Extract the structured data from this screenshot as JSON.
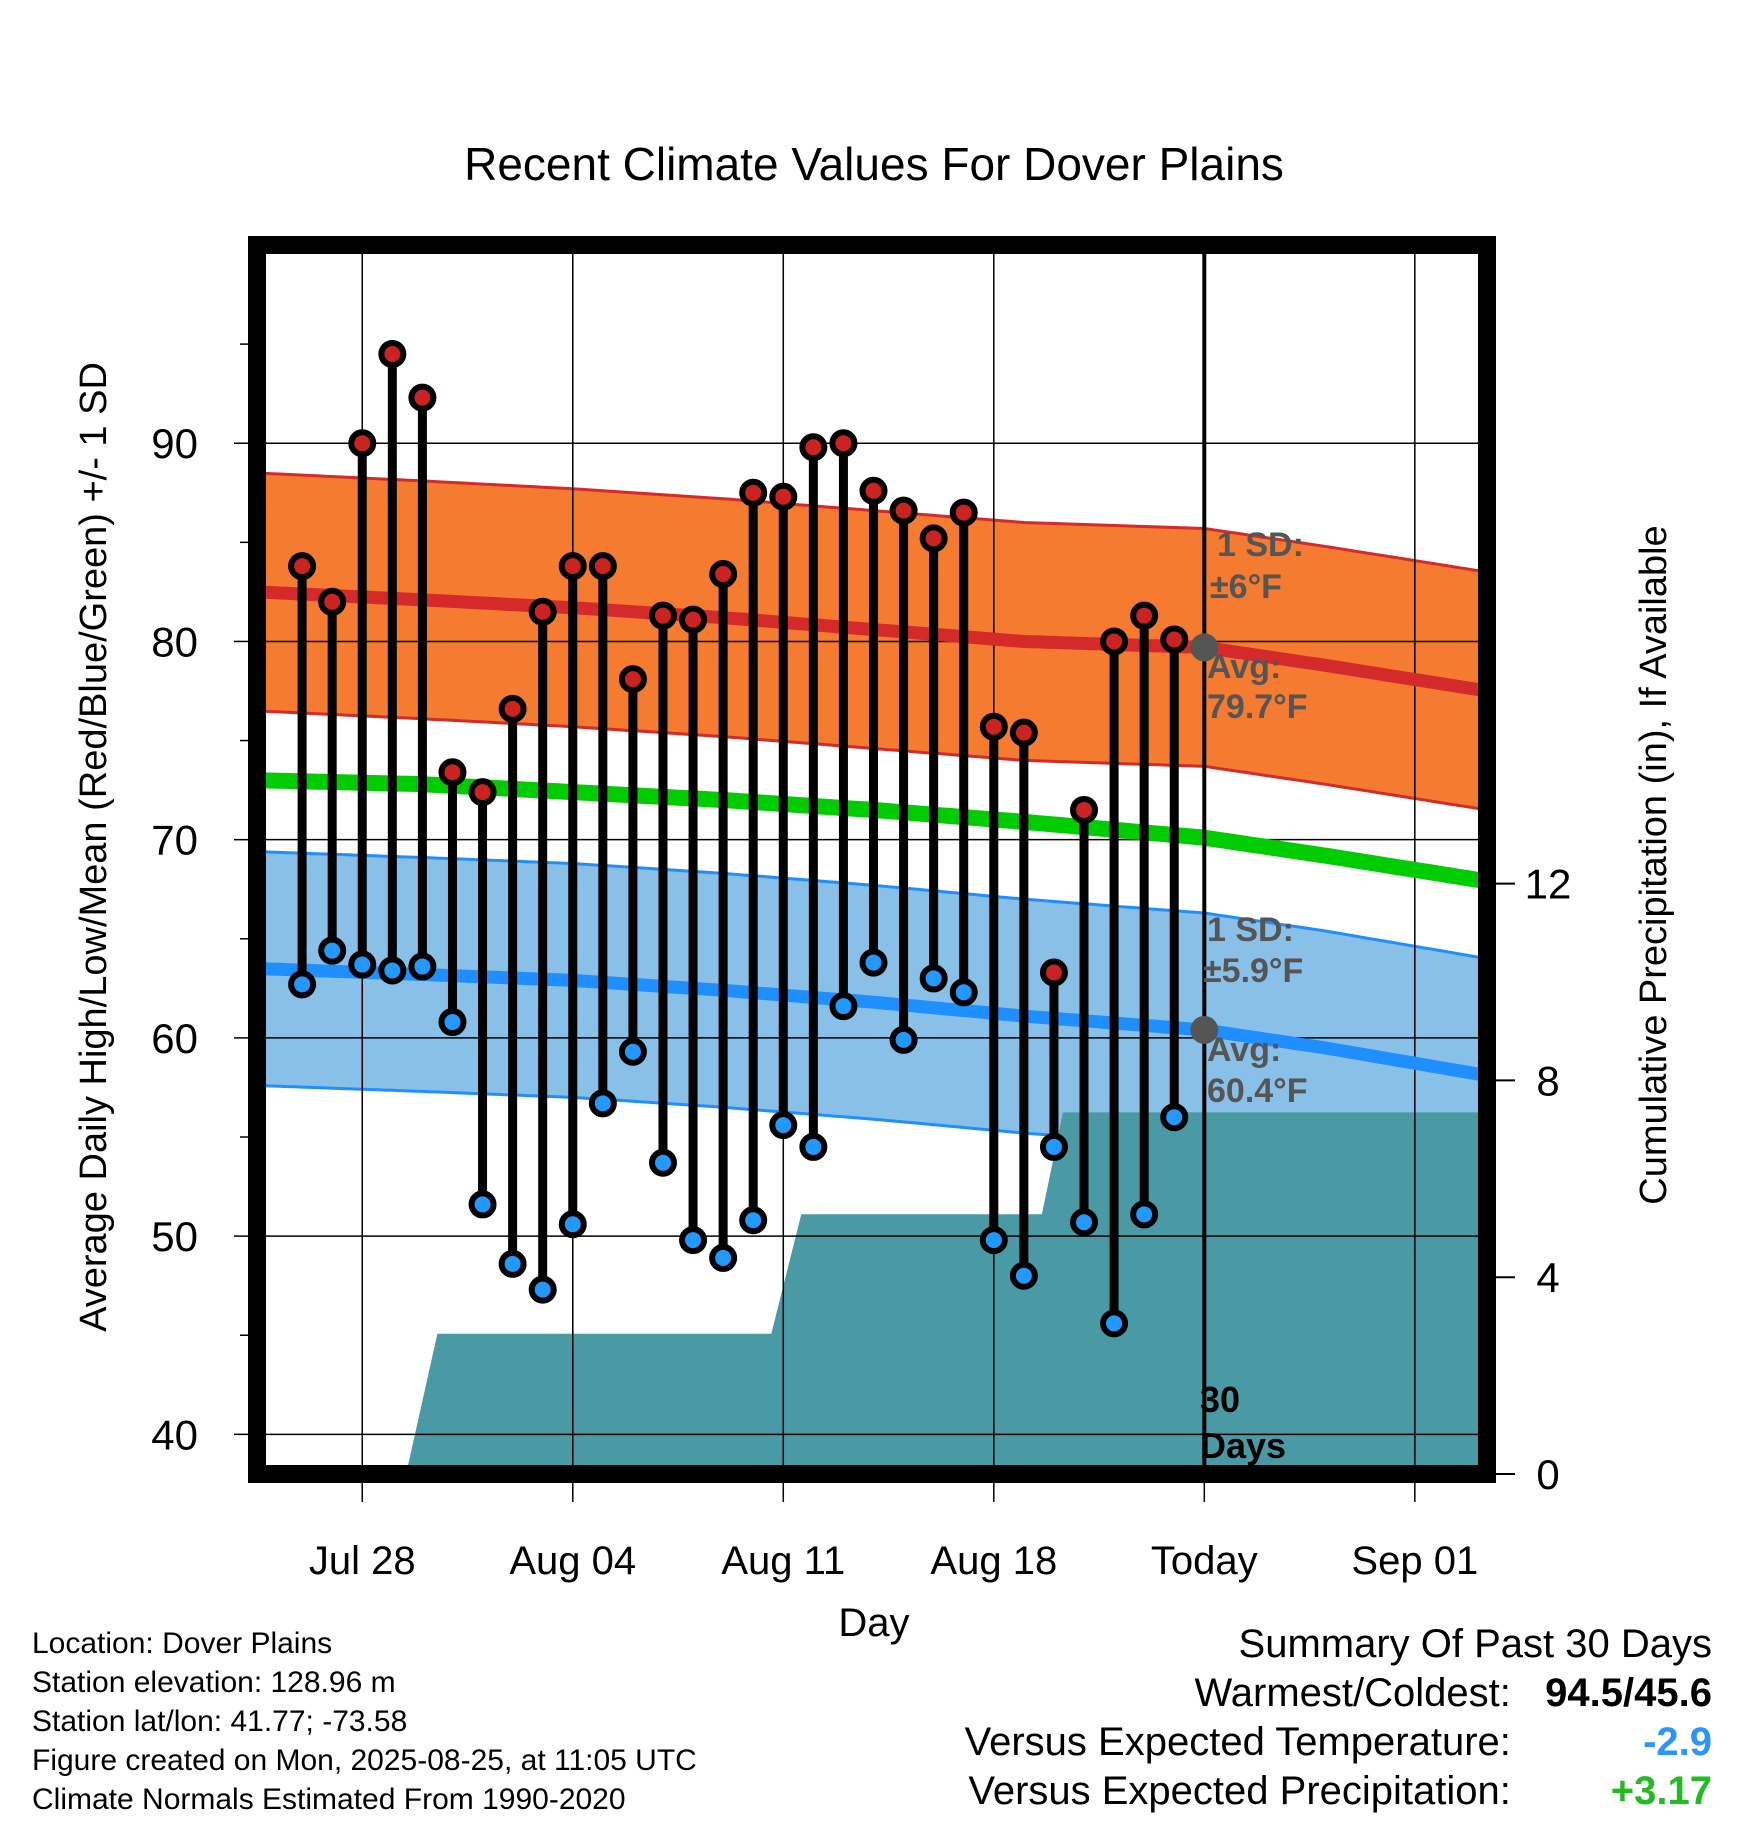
{
  "chart_data": {
    "type": "line",
    "title": "Recent Climate Values For Dover Plains",
    "xlabel": "Day",
    "ylabel": "Average Daily High/Low/Mean (Red/Blue/Green) +/- 1 SD",
    "y2label": "Cumulative Precipitation (in), If Available",
    "ylim": [
      38,
      100
    ],
    "y2lim": [
      0,
      21.3
    ],
    "y_ticks": [
      40,
      50,
      60,
      70,
      80,
      90
    ],
    "y2_ticks": [
      0,
      4,
      8,
      12
    ],
    "x_ticks": [
      {
        "label": "Jul 28",
        "day": 3
      },
      {
        "label": "Aug 04",
        "day": 10
      },
      {
        "label": "Aug 11",
        "day": 17
      },
      {
        "label": "Aug 18",
        "day": 24
      },
      {
        "label": "Today",
        "day": 31
      },
      {
        "label": "Sep 01",
        "day": 38
      }
    ],
    "x_range": [
      -0.5,
      40.4
    ],
    "grid": true,
    "today_day": 31,
    "today_label": "30 Days",
    "observed": {
      "days": [
        1,
        2,
        3,
        4,
        5,
        6,
        7,
        8,
        9,
        10,
        11,
        12,
        13,
        14,
        15,
        16,
        17,
        18,
        19,
        20,
        21,
        22,
        23,
        24,
        25,
        26,
        27,
        28,
        29,
        30
      ],
      "high": [
        83.8,
        82.0,
        90.0,
        94.5,
        92.3,
        73.4,
        72.4,
        76.6,
        81.5,
        83.8,
        83.8,
        78.1,
        81.3,
        81.1,
        83.4,
        87.5,
        87.3,
        89.8,
        90.0,
        87.6,
        86.6,
        85.2,
        86.5,
        75.7,
        75.4,
        63.3,
        71.5,
        80.0,
        81.3,
        80.1
      ],
      "low": [
        62.7,
        64.4,
        63.7,
        63.4,
        63.6,
        60.8,
        51.6,
        48.6,
        47.3,
        50.6,
        56.7,
        59.3,
        53.7,
        49.8,
        48.9,
        50.8,
        55.6,
        54.5,
        61.6,
        63.8,
        59.9,
        63.0,
        62.3,
        49.8,
        48.0,
        54.5,
        50.7,
        45.6,
        51.1,
        56.0
      ]
    },
    "normals": {
      "days": [
        -0.5,
        5,
        10,
        15,
        20,
        25,
        31,
        35,
        40.4
      ],
      "high_avg": [
        82.5,
        82.1,
        81.7,
        81.2,
        80.6,
        80.0,
        79.7,
        78.8,
        77.5
      ],
      "high_sd": 6,
      "low_avg": [
        63.5,
        63.2,
        62.9,
        62.4,
        61.8,
        61.1,
        60.4,
        59.5,
        58.1
      ],
      "low_sd": 5.9,
      "mean": [
        73.0,
        72.8,
        72.4,
        72.0,
        71.5,
        70.9,
        70.1,
        69.2,
        67.9
      ]
    },
    "precip": {
      "days": [
        0.4,
        1.6,
        4.5,
        5.5,
        16.6,
        17.6,
        25.6,
        26.3,
        40.4
      ],
      "cumulative": [
        0,
        0.12,
        0.12,
        2.85,
        2.85,
        5.28,
        5.28,
        7.35,
        7.35
      ]
    },
    "annotations": {
      "high_sd_label": "1 SD:",
      "high_sd_value": "±6°F",
      "high_avg_label": "Avg:",
      "high_avg_value": "79.7°F",
      "low_sd_label": "1 SD:",
      "low_sd_value": "±5.9°F",
      "low_avg_label": "Avg:",
      "low_avg_value": "60.4°F"
    },
    "colors": {
      "high_band": "#f47b30",
      "high_line": "#d42a2a",
      "low_band": "#88c0e8",
      "low_line": "#1f8fff",
      "mean_line": "#00cc00",
      "precip": "#4a9aa5",
      "high_point": "#cc2222",
      "low_point": "#2299ff",
      "today_point": "#555555",
      "annotation_text": "#555555"
    }
  },
  "footer": {
    "location": "Location: Dover Plains",
    "elevation": "Station elevation: 128.96 m",
    "latlon": "Station lat/lon: 41.77; -73.58",
    "created": "Figure created on Mon, 2025-08-25, at 11:05 UTC",
    "normals": "Climate Normals Estimated From 1990-2020"
  },
  "summary": {
    "title": "Summary Of Past 30 Days",
    "warm_cold_label": "Warmest/Coldest:",
    "warm_cold_value": "94.5/45.6",
    "temp_label": "Versus Expected Temperature:",
    "temp_value": "-2.9",
    "precip_label": "Versus Expected Precipitation:",
    "precip_value": "+3.17",
    "temp_color": "#2b95ff",
    "precip_color": "#22bb22"
  }
}
